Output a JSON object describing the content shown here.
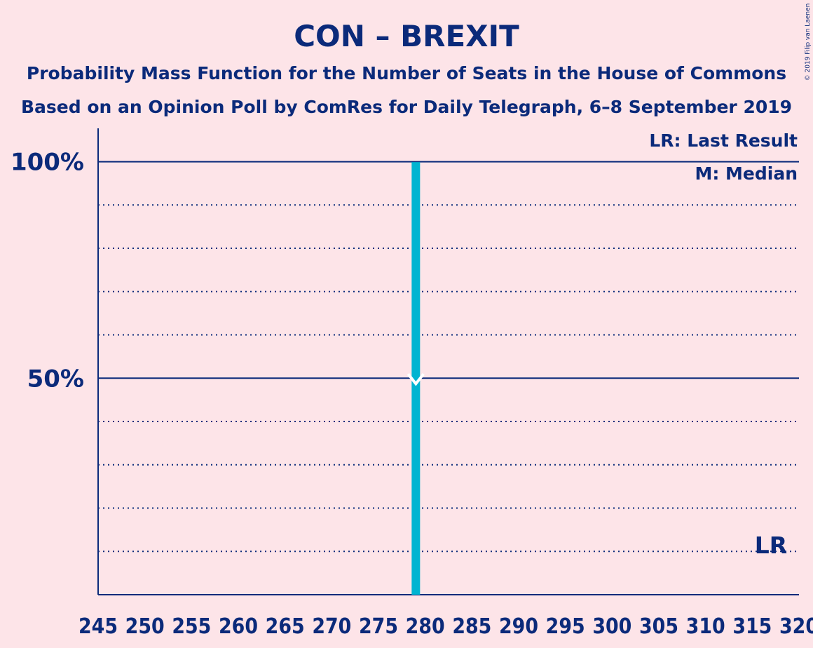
{
  "chart_data": {
    "type": "bar",
    "title": "CON – BREXIT",
    "subtitle1": "Probability Mass Function for the Number of Seats in the House of Commons",
    "subtitle2": "Based on an Opinion Poll by ComRes for Daily Telegraph, 6–8 September 2019",
    "copyright": "© 2019 Filip van Laenen",
    "xlim": [
      245,
      320
    ],
    "ylim": [
      0,
      1.09
    ],
    "x_ticks": [
      245,
      250,
      255,
      260,
      265,
      270,
      275,
      280,
      285,
      290,
      295,
      300,
      305,
      310,
      315,
      320
    ],
    "y_ticks": [
      {
        "value": 0.5,
        "label": "50%"
      },
      {
        "value": 1.0,
        "label": "100%"
      }
    ],
    "minor_gridlines": [
      0.1,
      0.2,
      0.3,
      0.4,
      0.6,
      0.7,
      0.8,
      0.9
    ],
    "bars": [
      {
        "x": 279,
        "value": 0.999
      }
    ],
    "median": 279,
    "last_result": 317,
    "legend": {
      "lr": "LR: Last Result",
      "m": "M: Median"
    },
    "lr_marker_label": "LR",
    "colors": {
      "background": "#fde4e8",
      "text": "#0b2a7a",
      "bar": "#00b4d1",
      "grid": "#0b2a7a"
    }
  }
}
